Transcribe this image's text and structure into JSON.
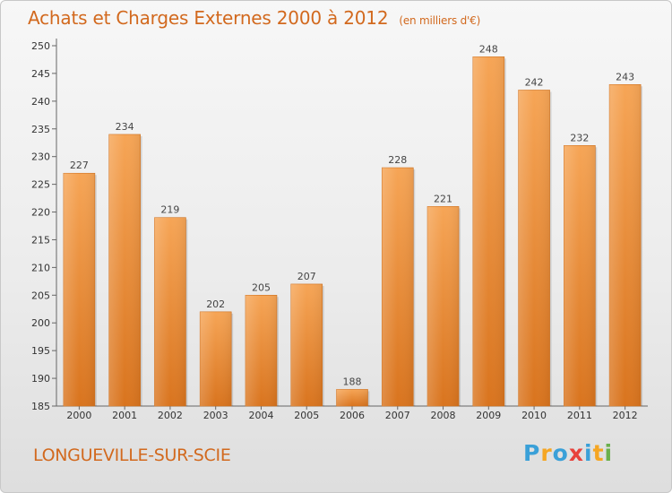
{
  "header": {
    "title": "Achats et Charges Externes 2000 à 2012",
    "subtitle": "(en milliers d'€)"
  },
  "footer": {
    "city": "LONGUEVILLE-SUR-SCIE",
    "brand": [
      "P",
      "r",
      "o",
      "x",
      "i",
      "t",
      "i"
    ],
    "brand_colors": [
      "#3aa0d8",
      "#f5a623",
      "#3aa0d8",
      "#e8423b",
      "#3aa0d8",
      "#f5a623",
      "#6ab04c"
    ]
  },
  "chart_data": {
    "type": "bar",
    "title": "Achats et Charges Externes 2000 à 2012",
    "subtitle": "(en milliers d'€)",
    "categories": [
      "2000",
      "2001",
      "2002",
      "2003",
      "2004",
      "2005",
      "2006",
      "2007",
      "2008",
      "2009",
      "2010",
      "2011",
      "2012"
    ],
    "values": [
      227,
      234,
      219,
      202,
      205,
      207,
      188,
      228,
      221,
      248,
      242,
      232,
      243
    ],
    "ylim": [
      185,
      250
    ],
    "yticks": [
      185,
      190,
      195,
      200,
      205,
      210,
      215,
      220,
      225,
      230,
      235,
      240,
      245,
      250
    ],
    "grid": false,
    "bar_color": "#e8822a",
    "accent_color": "#d2691e"
  }
}
